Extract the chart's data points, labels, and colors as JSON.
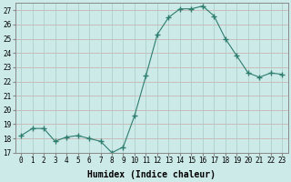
{
  "x": [
    0,
    1,
    2,
    3,
    4,
    5,
    6,
    7,
    8,
    9,
    10,
    11,
    12,
    13,
    14,
    15,
    16,
    17,
    18,
    19,
    20,
    21,
    22,
    23
  ],
  "y": [
    18.2,
    18.7,
    18.7,
    17.8,
    18.1,
    18.2,
    18.0,
    17.8,
    17.0,
    17.4,
    19.6,
    22.4,
    25.3,
    26.5,
    27.1,
    27.1,
    27.3,
    26.6,
    25.0,
    23.8,
    22.6,
    22.3,
    22.6,
    22.5
  ],
  "line_color": "#2e7d6e",
  "marker": "+",
  "marker_size": 4,
  "bg_color": "#cceae8",
  "grid_color_h": "#c9a8a8",
  "grid_color_v": "#a8c9c4",
  "ylim": [
    17,
    27.5
  ],
  "yticks": [
    17,
    18,
    19,
    20,
    21,
    22,
    23,
    24,
    25,
    26,
    27
  ],
  "xticks": [
    0,
    1,
    2,
    3,
    4,
    5,
    6,
    7,
    8,
    9,
    10,
    11,
    12,
    13,
    14,
    15,
    16,
    17,
    18,
    19,
    20,
    21,
    22,
    23
  ],
  "xlabel": "Humidex (Indice chaleur)",
  "xlabel_fontsize": 7,
  "tick_fontsize": 5.5,
  "spine_color": "#888888"
}
